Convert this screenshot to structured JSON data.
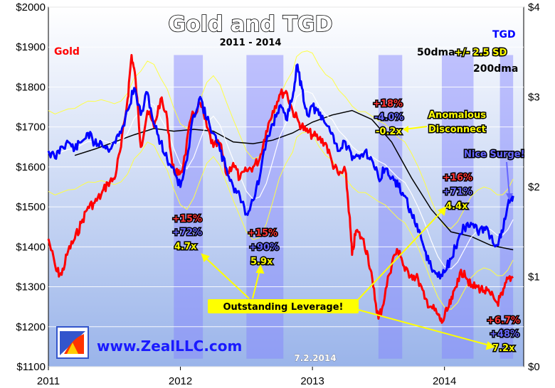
{
  "chart_data": {
    "type": "line",
    "title": "Gold and TGD",
    "subtitle": "2011 - 2014",
    "x_range": [
      2011.0,
      2014.6
    ],
    "x_ticks": [
      {
        "value": 2011,
        "label": "2011"
      },
      {
        "value": 2012,
        "label": "2012"
      },
      {
        "value": 2013,
        "label": "2013"
      },
      {
        "value": 2014,
        "label": "2014"
      }
    ],
    "y_left": {
      "range": [
        1100,
        2000
      ],
      "ticks": [
        {
          "value": 1100,
          "label": "$1100"
        },
        {
          "value": 1200,
          "label": "$1200"
        },
        {
          "value": 1300,
          "label": "$1300"
        },
        {
          "value": 1400,
          "label": "$1400"
        },
        {
          "value": 1500,
          "label": "$1500"
        },
        {
          "value": 1600,
          "label": "$1600"
        },
        {
          "value": 1700,
          "label": "$1700"
        },
        {
          "value": 1800,
          "label": "$1800"
        },
        {
          "value": 1900,
          "label": "$1900"
        },
        {
          "value": 2000,
          "label": "$2000"
        }
      ]
    },
    "y_right": {
      "range": [
        0,
        4
      ],
      "ticks": [
        {
          "value": 0,
          "label": "$0"
        },
        {
          "value": 1,
          "label": "$1"
        },
        {
          "value": 2,
          "label": "$2"
        },
        {
          "value": 3,
          "label": "$3"
        },
        {
          "value": 4,
          "label": "$4"
        }
      ]
    },
    "series": [
      {
        "name": "Gold",
        "axis": "left",
        "color": "#ff0000",
        "points": [
          [
            2011.0,
            1420
          ],
          [
            2011.06,
            1340
          ],
          [
            2011.1,
            1330
          ],
          [
            2011.15,
            1390
          ],
          [
            2011.2,
            1420
          ],
          [
            2011.25,
            1460
          ],
          [
            2011.3,
            1500
          ],
          [
            2011.35,
            1510
          ],
          [
            2011.4,
            1530
          ],
          [
            2011.45,
            1560
          ],
          [
            2011.5,
            1570
          ],
          [
            2011.55,
            1650
          ],
          [
            2011.6,
            1770
          ],
          [
            2011.63,
            1880
          ],
          [
            2011.66,
            1820
          ],
          [
            2011.7,
            1650
          ],
          [
            2011.75,
            1740
          ],
          [
            2011.8,
            1700
          ],
          [
            2011.85,
            1770
          ],
          [
            2011.9,
            1720
          ],
          [
            2011.94,
            1600
          ],
          [
            2011.98,
            1580
          ],
          [
            2012.02,
            1600
          ],
          [
            2012.08,
            1720
          ],
          [
            2012.15,
            1760
          ],
          [
            2012.2,
            1700
          ],
          [
            2012.25,
            1650
          ],
          [
            2012.3,
            1660
          ],
          [
            2012.35,
            1580
          ],
          [
            2012.4,
            1610
          ],
          [
            2012.45,
            1570
          ],
          [
            2012.5,
            1590
          ],
          [
            2012.55,
            1600
          ],
          [
            2012.6,
            1620
          ],
          [
            2012.65,
            1690
          ],
          [
            2012.7,
            1740
          ],
          [
            2012.75,
            1780
          ],
          [
            2012.8,
            1790
          ],
          [
            2012.85,
            1740
          ],
          [
            2012.9,
            1710
          ],
          [
            2012.95,
            1690
          ],
          [
            2013.0,
            1680
          ],
          [
            2013.05,
            1670
          ],
          [
            2013.1,
            1660
          ],
          [
            2013.15,
            1610
          ],
          [
            2013.2,
            1580
          ],
          [
            2013.25,
            1590
          ],
          [
            2013.28,
            1480
          ],
          [
            2013.3,
            1380
          ],
          [
            2013.33,
            1440
          ],
          [
            2013.38,
            1420
          ],
          [
            2013.42,
            1380
          ],
          [
            2013.46,
            1300
          ],
          [
            2013.5,
            1220
          ],
          [
            2013.53,
            1250
          ],
          [
            2013.58,
            1330
          ],
          [
            2013.62,
            1380
          ],
          [
            2013.66,
            1390
          ],
          [
            2013.7,
            1340
          ],
          [
            2013.75,
            1330
          ],
          [
            2013.8,
            1320
          ],
          [
            2013.85,
            1270
          ],
          [
            2013.9,
            1250
          ],
          [
            2013.95,
            1230
          ],
          [
            2013.98,
            1210
          ],
          [
            2014.02,
            1240
          ],
          [
            2014.06,
            1270
          ],
          [
            2014.1,
            1320
          ],
          [
            2014.15,
            1340
          ],
          [
            2014.2,
            1300
          ],
          [
            2014.25,
            1300
          ],
          [
            2014.3,
            1290
          ],
          [
            2014.35,
            1280
          ],
          [
            2014.4,
            1260
          ],
          [
            2014.44,
            1280
          ],
          [
            2014.48,
            1320
          ],
          [
            2014.52,
            1325
          ]
        ]
      },
      {
        "name": "TGD",
        "axis": "right",
        "color": "#0000ff",
        "points": [
          [
            2011.0,
            2.4
          ],
          [
            2011.05,
            2.32
          ],
          [
            2011.1,
            2.45
          ],
          [
            2011.15,
            2.5
          ],
          [
            2011.2,
            2.42
          ],
          [
            2011.25,
            2.5
          ],
          [
            2011.3,
            2.6
          ],
          [
            2011.35,
            2.48
          ],
          [
            2011.4,
            2.5
          ],
          [
            2011.45,
            2.42
          ],
          [
            2011.5,
            2.5
          ],
          [
            2011.55,
            2.6
          ],
          [
            2011.6,
            2.85
          ],
          [
            2011.65,
            3.1
          ],
          [
            2011.7,
            2.8
          ],
          [
            2011.75,
            3.05
          ],
          [
            2011.8,
            2.7
          ],
          [
            2011.85,
            2.5
          ],
          [
            2011.9,
            2.3
          ],
          [
            2011.95,
            2.2
          ],
          [
            2012.0,
            2.0
          ],
          [
            2012.05,
            2.3
          ],
          [
            2012.1,
            2.8
          ],
          [
            2012.15,
            3.0
          ],
          [
            2012.2,
            2.75
          ],
          [
            2012.25,
            2.6
          ],
          [
            2012.3,
            2.4
          ],
          [
            2012.35,
            2.2
          ],
          [
            2012.4,
            2.0
          ],
          [
            2012.45,
            1.9
          ],
          [
            2012.5,
            1.7
          ],
          [
            2012.55,
            1.85
          ],
          [
            2012.6,
            2.1
          ],
          [
            2012.65,
            2.5
          ],
          [
            2012.7,
            2.7
          ],
          [
            2012.75,
            2.9
          ],
          [
            2012.8,
            2.75
          ],
          [
            2012.85,
            3.0
          ],
          [
            2012.88,
            3.35
          ],
          [
            2012.92,
            3.1
          ],
          [
            2012.96,
            2.8
          ],
          [
            2013.0,
            2.9
          ],
          [
            2013.05,
            2.8
          ],
          [
            2013.1,
            2.7
          ],
          [
            2013.15,
            2.6
          ],
          [
            2013.2,
            2.4
          ],
          [
            2013.25,
            2.5
          ],
          [
            2013.3,
            2.3
          ],
          [
            2013.35,
            2.35
          ],
          [
            2013.4,
            2.4
          ],
          [
            2013.45,
            2.3
          ],
          [
            2013.5,
            2.1
          ],
          [
            2013.55,
            2.2
          ],
          [
            2013.6,
            2.1
          ],
          [
            2013.65,
            2.0
          ],
          [
            2013.7,
            1.9
          ],
          [
            2013.75,
            1.7
          ],
          [
            2013.8,
            1.5
          ],
          [
            2013.85,
            1.3
          ],
          [
            2013.9,
            1.1
          ],
          [
            2013.95,
            1.0
          ],
          [
            2014.0,
            1.05
          ],
          [
            2014.05,
            1.2
          ],
          [
            2014.1,
            1.4
          ],
          [
            2014.15,
            1.55
          ],
          [
            2014.2,
            1.6
          ],
          [
            2014.25,
            1.5
          ],
          [
            2014.3,
            1.55
          ],
          [
            2014.35,
            1.45
          ],
          [
            2014.4,
            1.35
          ],
          [
            2014.44,
            1.5
          ],
          [
            2014.48,
            1.8
          ],
          [
            2014.52,
            1.9
          ]
        ]
      }
    ],
    "overlays": [
      {
        "name": "50dma",
        "color": "#ffffff"
      },
      {
        "name": "+/- 2.5 SD",
        "color": "#ffff00"
      },
      {
        "name": "200dma",
        "color": "#000000"
      }
    ],
    "tgd_200dma": [
      [
        2011.2,
        2.35
      ],
      [
        2011.35,
        2.42
      ],
      [
        2011.5,
        2.5
      ],
      [
        2011.65,
        2.58
      ],
      [
        2011.8,
        2.65
      ],
      [
        2011.95,
        2.62
      ],
      [
        2012.1,
        2.64
      ],
      [
        2012.25,
        2.62
      ],
      [
        2012.4,
        2.5
      ],
      [
        2012.55,
        2.48
      ],
      [
        2012.7,
        2.52
      ],
      [
        2012.85,
        2.6
      ],
      [
        2013.0,
        2.72
      ],
      [
        2013.15,
        2.8
      ],
      [
        2013.3,
        2.85
      ],
      [
        2013.45,
        2.75
      ],
      [
        2013.6,
        2.5
      ],
      [
        2013.75,
        2.1
      ],
      [
        2013.9,
        1.75
      ],
      [
        2014.05,
        1.5
      ],
      [
        2014.2,
        1.45
      ],
      [
        2014.35,
        1.35
      ],
      [
        2014.52,
        1.3
      ]
    ],
    "highlight_bands": [
      {
        "x0": 2011.95,
        "x1": 2012.17,
        "y0": 1120,
        "y1": 1880
      },
      {
        "x0": 2012.5,
        "x1": 2012.78,
        "y0": 1120,
        "y1": 1880
      },
      {
        "x0": 2013.5,
        "x1": 2013.68,
        "y0": 1120,
        "y1": 1880
      },
      {
        "x0": 2013.98,
        "x1": 2014.22,
        "y0": 1120,
        "y1": 1880
      },
      {
        "x0": 2014.42,
        "x1": 2014.52,
        "y0": 1120,
        "y1": 1880
      }
    ],
    "legend": {
      "gold_label": "Gold",
      "tgd_label": "TGD",
      "dma50": "50dma",
      "sd": "+/- 2.5 SD",
      "dma200": "200dma"
    },
    "annotations": {
      "group1": {
        "gold": "+15%",
        "tgd": "+72%",
        "lev": "4.7x"
      },
      "group2": {
        "gold": "+15%",
        "tgd": "+90%",
        "lev": "5.9x"
      },
      "group3": {
        "gold": "+18%",
        "tgd": "-4.0%",
        "lev": "-0.2x"
      },
      "group4": {
        "gold": "+16%",
        "tgd": "+71%",
        "lev": "4.4x"
      },
      "group5": {
        "gold": "+6.7%",
        "tgd": "+48%",
        "lev": "7.2x"
      },
      "anomalous_line1": "Anomalous",
      "anomalous_line2": "Disconnect",
      "nice_surge": "Nice Surge!",
      "outstanding": "Outstanding Leverage!"
    },
    "website": "www.ZealLLC.com",
    "date_stamp": "7.2.2014",
    "colors": {
      "gold": "#ff0000",
      "tgd": "#0000ff",
      "yellow": "#ffff00",
      "band": "#8080ff"
    }
  }
}
